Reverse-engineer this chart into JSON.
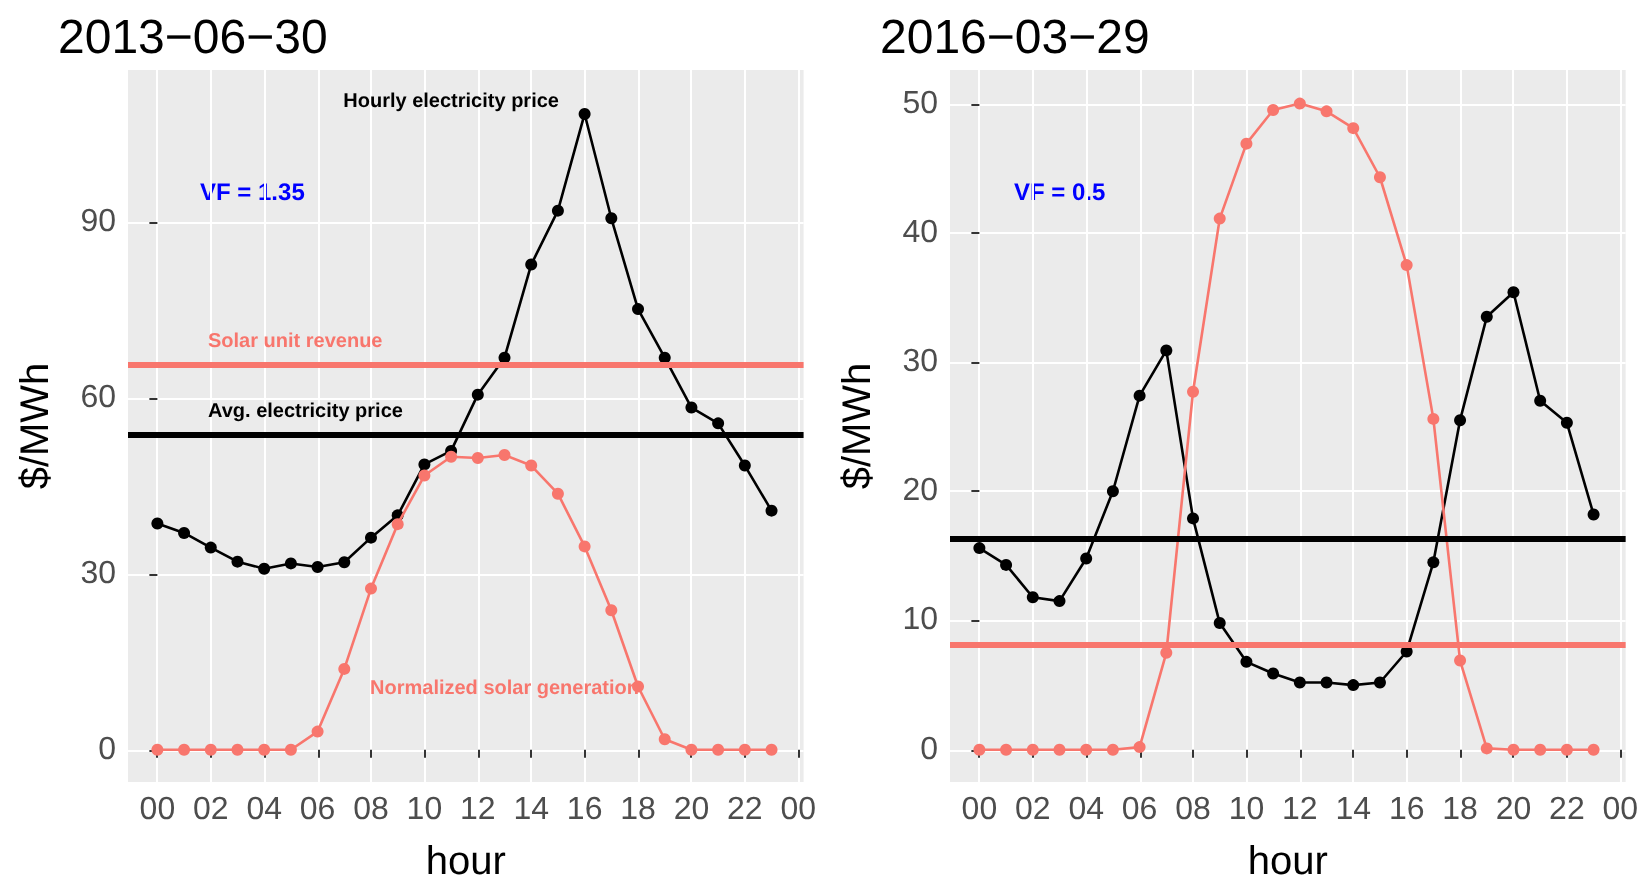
{
  "chart_data": [
    {
      "type": "line",
      "title": "2013−06−30",
      "xlabel": "hour",
      "ylabel": "$/MWh",
      "x": [
        0,
        1,
        2,
        3,
        4,
        5,
        6,
        7,
        8,
        9,
        10,
        11,
        12,
        13,
        14,
        15,
        16,
        17,
        18,
        19,
        20,
        21,
        22,
        23
      ],
      "series": [
        {
          "name": "Hourly electricity price",
          "color": "#000000",
          "values": [
            38.6,
            37,
            34.5,
            32.1,
            30.9,
            31.8,
            31.2,
            32,
            36.2,
            40,
            48.7,
            51,
            60.6,
            66.9,
            82.8,
            92,
            108.5,
            90.7,
            75.2,
            66.9,
            58.4,
            55.7,
            48.5,
            40.8
          ]
        },
        {
          "name": "Normalized solar generation",
          "color": "#f8766d",
          "values": [
            0,
            0,
            0,
            0,
            0,
            0,
            3.1,
            13.8,
            27.5,
            38.5,
            46.8,
            50,
            49.8,
            50.3,
            48.5,
            43.7,
            34.7,
            23.8,
            10.8,
            1.8,
            0,
            0,
            0,
            0
          ]
        }
      ],
      "ref_lines": [
        {
          "axis": "y",
          "value": 53.8,
          "label": "Avg. electricity price",
          "color": "#000000"
        },
        {
          "axis": "y",
          "value": 65.9,
          "label": "Solar unit revenue",
          "color": "#f8766d"
        }
      ],
      "annotations": [
        "VF = 1.35"
      ],
      "xlim": [
        -1.1,
        24.2
      ],
      "xticks": [
        {
          "value": 0,
          "label": "00"
        },
        {
          "value": 2,
          "label": "02"
        },
        {
          "value": 4,
          "label": "04"
        },
        {
          "value": 6,
          "label": "06"
        },
        {
          "value": 8,
          "label": "08"
        },
        {
          "value": 10,
          "label": "10"
        },
        {
          "value": 12,
          "label": "12"
        },
        {
          "value": 14,
          "label": "14"
        },
        {
          "value": 16,
          "label": "16"
        },
        {
          "value": 18,
          "label": "18"
        },
        {
          "value": 20,
          "label": "20"
        },
        {
          "value": 22,
          "label": "22"
        },
        {
          "value": 24,
          "label": "00"
        }
      ],
      "ylim": [
        -5.5,
        116
      ],
      "yticks": [
        0,
        30,
        60,
        90
      ],
      "grid": true,
      "legend": false,
      "marker": "circle",
      "line_style": "solid"
    },
    {
      "type": "line",
      "title": "2016−03−29",
      "xlabel": "hour",
      "ylabel": "$/MWh",
      "x": [
        0,
        1,
        2,
        3,
        4,
        5,
        6,
        7,
        8,
        9,
        10,
        11,
        12,
        13,
        14,
        15,
        16,
        17,
        18,
        19,
        20,
        21,
        22,
        23
      ],
      "series": [
        {
          "color": "#000000",
          "values": [
            15.6,
            14.3,
            11.8,
            11.5,
            14.8,
            20,
            27.4,
            30.9,
            17.9,
            9.8,
            6.8,
            5.9,
            5.2,
            5.2,
            5.0,
            5.2,
            7.6,
            14.5,
            25.5,
            33.5,
            35.4,
            27,
            25.3,
            18.2
          ]
        },
        {
          "color": "#f8766d",
          "values": [
            0,
            0,
            0,
            0,
            0,
            0,
            0.2,
            7.5,
            27.7,
            41.1,
            46.9,
            49.5,
            50,
            49.4,
            48.1,
            44.3,
            37.5,
            25.6,
            6.9,
            0.1,
            0,
            0,
            0,
            0
          ]
        }
      ],
      "ref_lines": [
        {
          "axis": "y",
          "value": 16.4,
          "color": "#000000"
        },
        {
          "axis": "y",
          "value": 8.2,
          "color": "#f8766d"
        }
      ],
      "annotations": [
        "VF = 0.5"
      ],
      "xlim": [
        -1.1,
        24.2
      ],
      "xticks": [
        {
          "value": 0,
          "label": "00"
        },
        {
          "value": 2,
          "label": "02"
        },
        {
          "value": 4,
          "label": "04"
        },
        {
          "value": 6,
          "label": "06"
        },
        {
          "value": 8,
          "label": "08"
        },
        {
          "value": 10,
          "label": "10"
        },
        {
          "value": 12,
          "label": "12"
        },
        {
          "value": 14,
          "label": "14"
        },
        {
          "value": 16,
          "label": "16"
        },
        {
          "value": 18,
          "label": "18"
        },
        {
          "value": 20,
          "label": "20"
        },
        {
          "value": 22,
          "label": "22"
        },
        {
          "value": 24,
          "label": "00"
        }
      ],
      "ylim": [
        -2.5,
        52.6
      ],
      "yticks": [
        0,
        10,
        20,
        30,
        40,
        50
      ],
      "grid": true,
      "legend": false,
      "marker": "circle",
      "line_style": "solid"
    }
  ]
}
